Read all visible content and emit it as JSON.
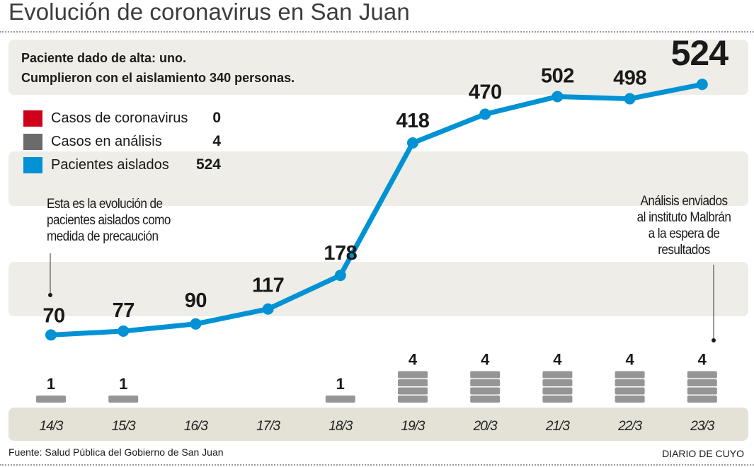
{
  "title": "Evolución de coronavirus en San Juan",
  "note": {
    "line1": "Paciente dado de alta: uno.",
    "line2": "Cumplieron con el aislamiento 340 personas."
  },
  "legend": [
    {
      "label": "Casos de coronavirus",
      "value": "0",
      "color": "#d0021b"
    },
    {
      "label": "Casos en análisis",
      "value": "4",
      "color": "#6b6b6b"
    },
    {
      "label": "Pacientes aislados",
      "value": "524",
      "color": "#0092d4"
    }
  ],
  "annotations": {
    "left": [
      "Esta es la evolución de",
      "pacientes aislados como",
      "medida de precaución"
    ],
    "right": [
      "Análisis enviados",
      "al instituto Malbrán",
      "a la espera de",
      "resultados"
    ]
  },
  "footer": {
    "source": "Fuente: Salud Pública del Gobierno de San Juan",
    "brand": "DIARIO DE CUYO"
  },
  "chart_data": {
    "type": "line",
    "title": "Evolución de coronavirus en San Juan",
    "xlabel": "",
    "ylabel": "",
    "categories": [
      "14/3",
      "15/3",
      "16/3",
      "17/3",
      "18/3",
      "19/3",
      "20/3",
      "21/3",
      "22/3",
      "23/3"
    ],
    "series": [
      {
        "name": "Pacientes aislados",
        "color": "#0092d4",
        "values": [
          70,
          77,
          90,
          117,
          178,
          418,
          470,
          502,
          498,
          524
        ]
      },
      {
        "name": "Casos en análisis",
        "color": "#959595",
        "type": "stacked-blocks",
        "values": [
          1,
          1,
          0,
          0,
          1,
          4,
          4,
          4,
          4,
          4
        ]
      }
    ],
    "ylim": [
      0,
      560
    ],
    "grid": false,
    "legend_position": "top-left"
  }
}
